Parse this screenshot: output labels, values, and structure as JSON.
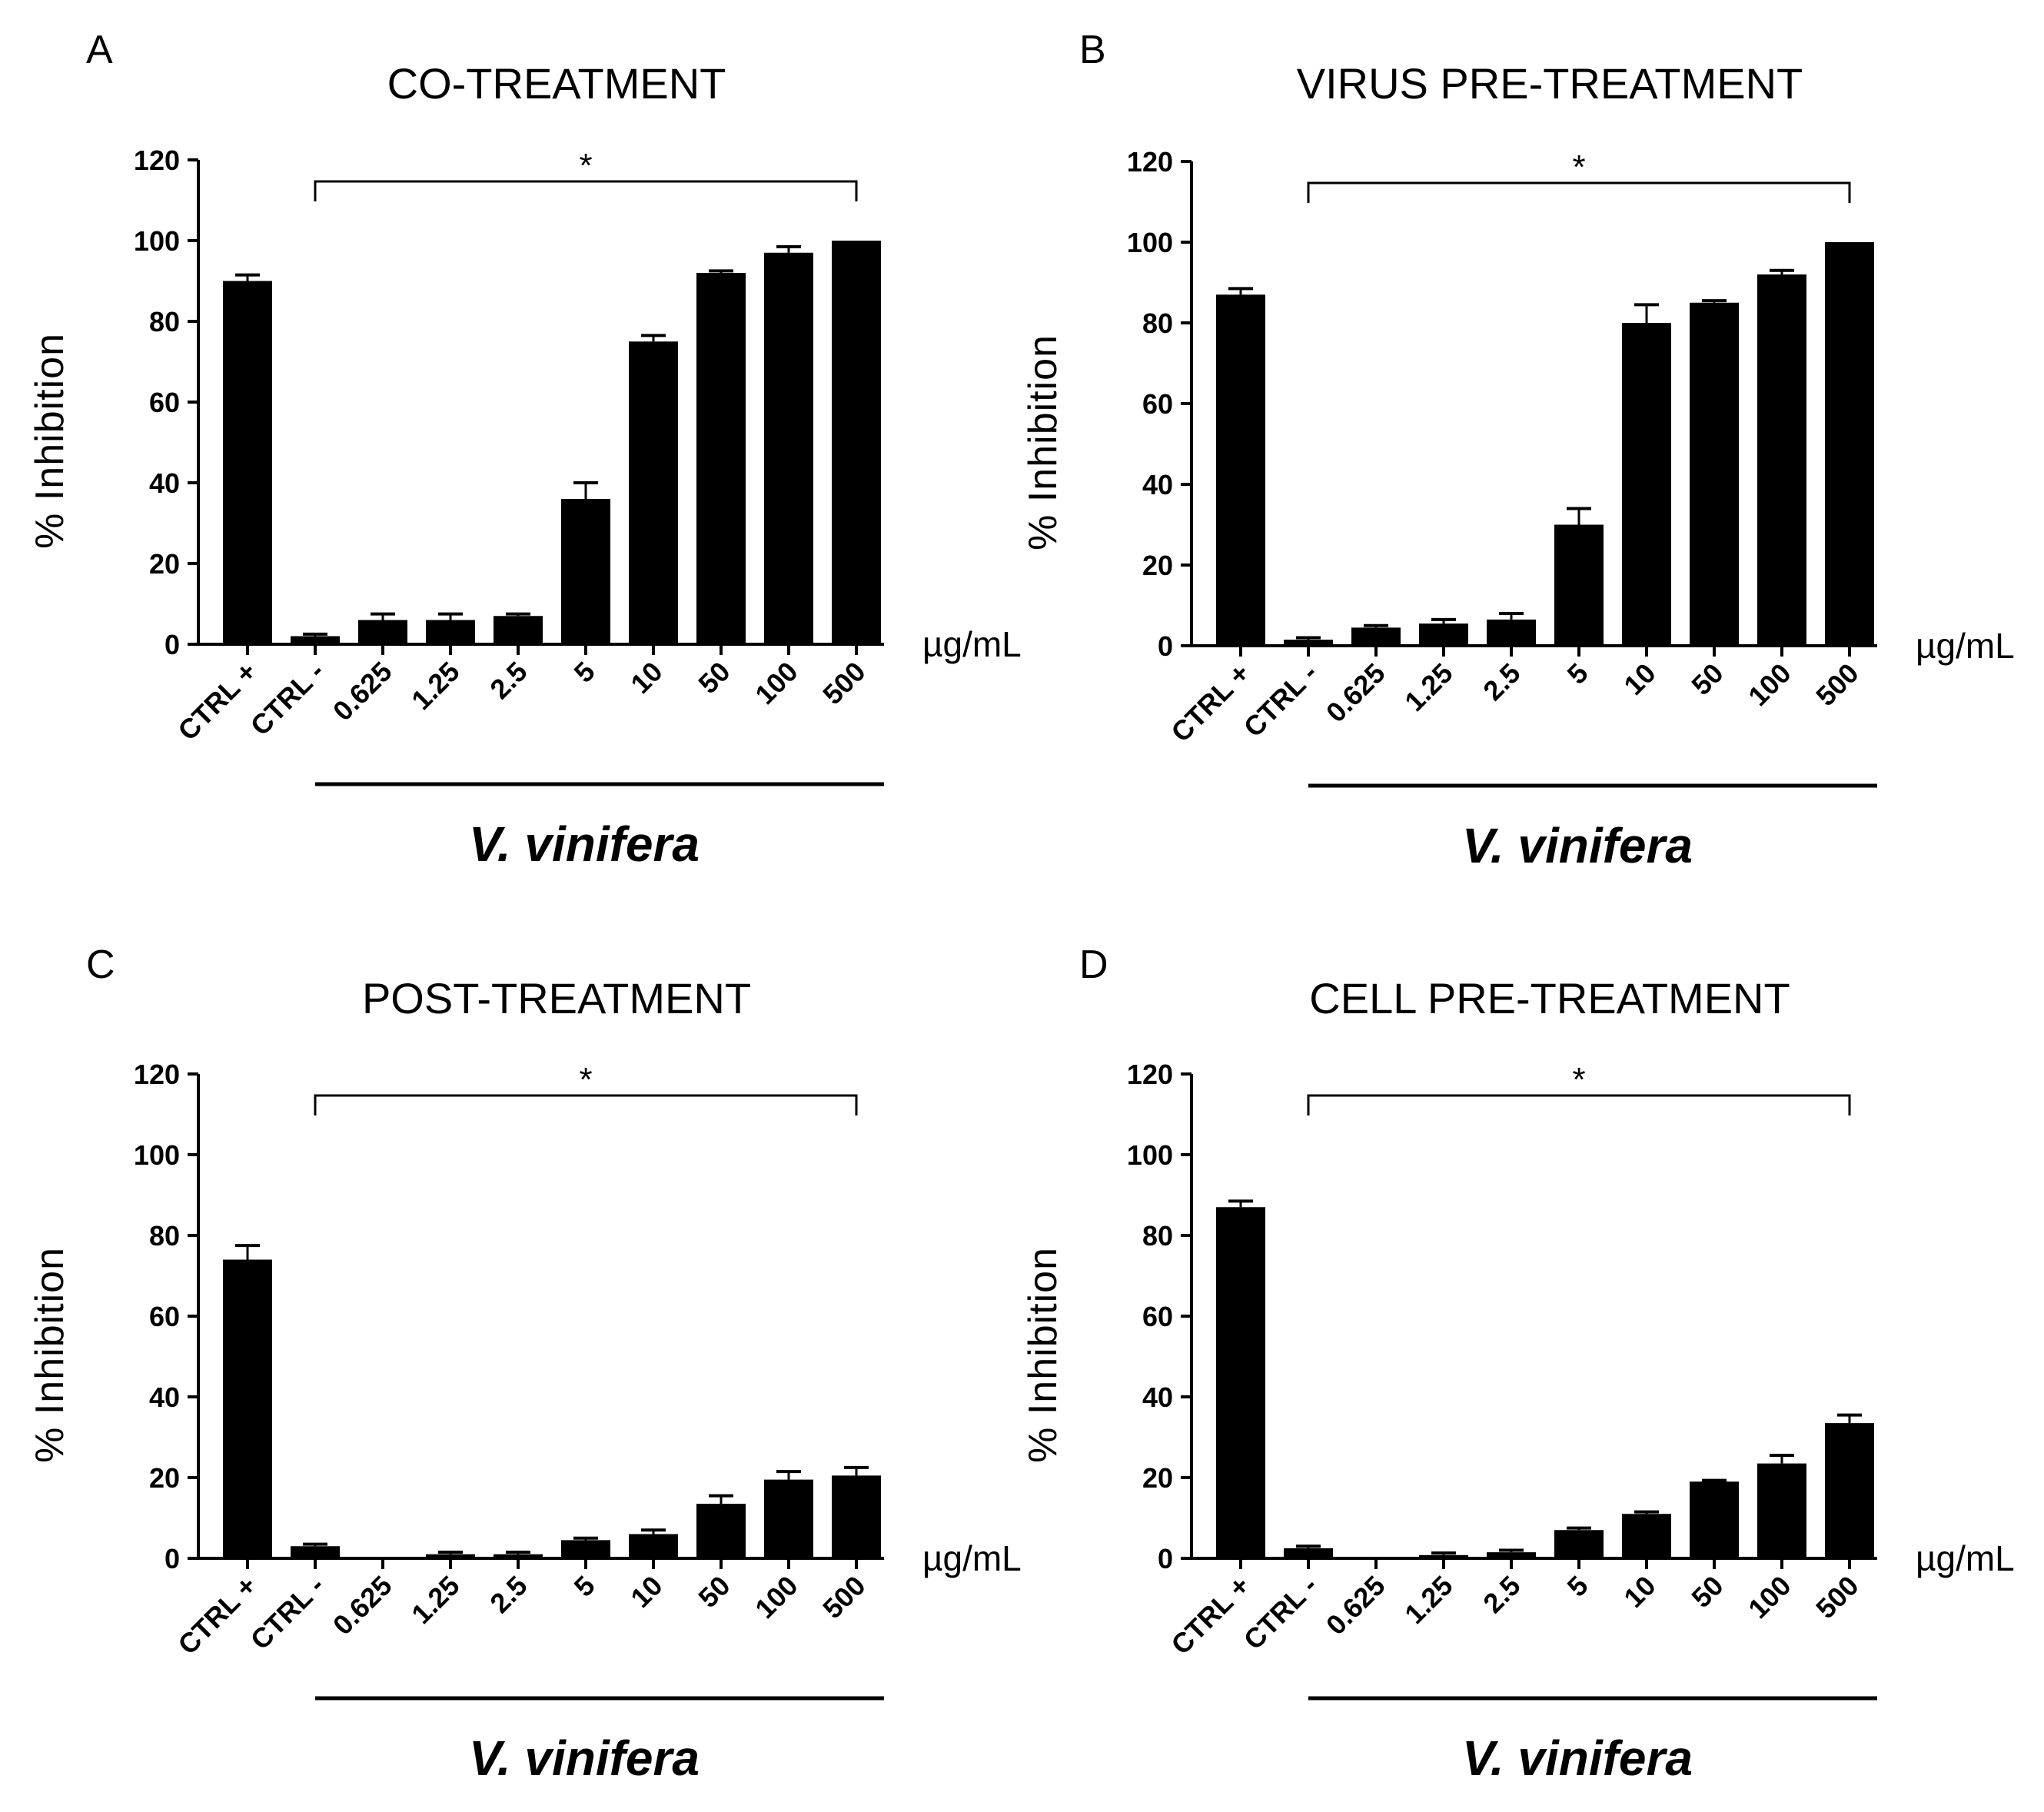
{
  "chart_data": [
    {
      "panel": "A",
      "type": "bar",
      "title": "CO-TREATMENT",
      "ylabel": "% Inhibition",
      "unit": "µg/mL",
      "group_label": "V. vinifera",
      "significance": "*",
      "ylim": [
        0,
        120
      ],
      "yticks": [
        "0",
        "20",
        "40",
        "60",
        "80",
        "100",
        "120"
      ],
      "categories": [
        "CTRL +",
        "CTRL -",
        "0.625",
        "1.25",
        "2.5",
        "5",
        "10",
        "50",
        "100",
        "500"
      ],
      "values": [
        90,
        2,
        6,
        6,
        7,
        36,
        75,
        92,
        97,
        100
      ],
      "errors": [
        1.5,
        0.5,
        1.5,
        1.5,
        0.5,
        4,
        1.5,
        0.5,
        1.5,
        0
      ]
    },
    {
      "panel": "B",
      "type": "bar",
      "title": "VIRUS PRE-TREATMENT",
      "ylabel": "% Inhibition",
      "unit": "µg/mL",
      "group_label": "V. vinifera",
      "significance": "*",
      "ylim": [
        0,
        120
      ],
      "yticks": [
        "0",
        "20",
        "40",
        "60",
        "80",
        "100",
        "120"
      ],
      "categories": [
        "CTRL +",
        "CTRL -",
        "0.625",
        "1.25",
        "2.5",
        "5",
        "10",
        "50",
        "100",
        "500"
      ],
      "values": [
        87,
        1.5,
        4.5,
        5.5,
        6.5,
        30,
        80,
        85,
        92,
        100
      ],
      "errors": [
        1.5,
        0.5,
        0.5,
        1,
        1.5,
        4,
        4.5,
        0.5,
        1,
        0
      ]
    },
    {
      "panel": "C",
      "type": "bar",
      "title": "POST-TREATMENT",
      "ylabel": "% Inhibition",
      "unit": "µg/mL",
      "group_label": "V. vinifera",
      "significance": "*",
      "ylim": [
        0,
        120
      ],
      "yticks": [
        "0",
        "20",
        "40",
        "60",
        "80",
        "100",
        "120"
      ],
      "categories": [
        "CTRL +",
        "CTRL -",
        "0.625",
        "1.25",
        "2.5",
        "5",
        "10",
        "50",
        "100",
        "500"
      ],
      "values": [
        74,
        3,
        0,
        1,
        1,
        4.5,
        6,
        13.5,
        19.5,
        20.5
      ],
      "errors": [
        3.5,
        0.5,
        0,
        0.5,
        0.5,
        0.5,
        1,
        2,
        2,
        2
      ]
    },
    {
      "panel": "D",
      "type": "bar",
      "title": "CELL PRE-TREATMENT",
      "ylabel": "% Inhibition",
      "unit": "µg/mL",
      "group_label": "V. vinifera",
      "significance": "*",
      "ylim": [
        0,
        120
      ],
      "yticks": [
        "0",
        "20",
        "40",
        "60",
        "80",
        "100",
        "120"
      ],
      "categories": [
        "CTRL +",
        "CTRL -",
        "0.625",
        "1.25",
        "2.5",
        "5",
        "10",
        "50",
        "100",
        "500"
      ],
      "values": [
        87,
        2.5,
        0.3,
        0.8,
        1.5,
        7,
        11,
        19,
        23.5,
        33.5
      ],
      "errors": [
        1.5,
        0.5,
        0,
        0.5,
        0.5,
        0.5,
        0.5,
        0.3,
        2,
        2
      ]
    }
  ]
}
